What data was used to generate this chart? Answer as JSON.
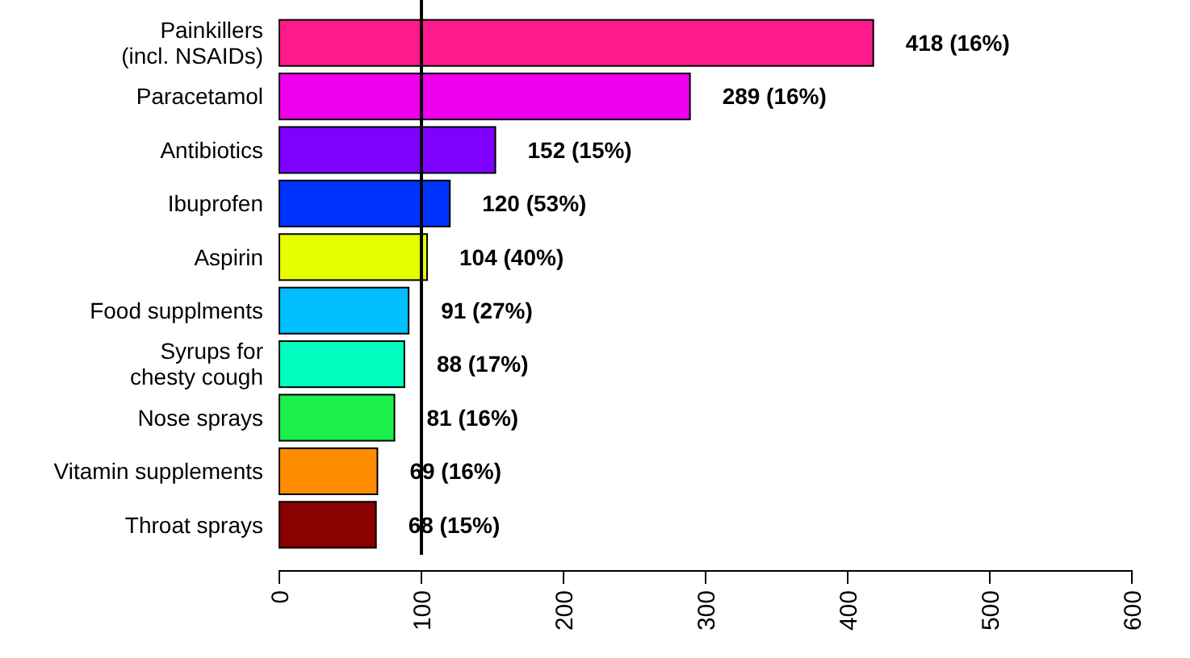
{
  "chart_data": {
    "type": "bar",
    "orientation": "horizontal",
    "categories": [
      "Painkillers\n(incl. NSAIDs)",
      "Paracetamol",
      "Antibiotics",
      "Ibuprofen",
      "Aspirin",
      "Food supplments",
      "Syrups for\nchesty cough",
      "Nose sprays",
      "Vitamin supplements",
      "Throat sprays"
    ],
    "values": [
      418,
      289,
      152,
      120,
      104,
      91,
      88,
      81,
      69,
      68
    ],
    "colors": [
      "#ff1a8c",
      "#ee00ee",
      "#8000ff",
      "#0033ff",
      "#e5ff00",
      "#00bfff",
      "#00ffbf",
      "#1aef4b",
      "#ff8c00",
      "#8b0000"
    ],
    "value_labels": [
      "418 (16%)",
      "289 (16%)",
      "152 (15%)",
      "120 (53%)",
      "104 (40%)",
      "91 (27%)",
      "88 (17%)",
      "81 (16%)",
      "69 (16%)",
      "68 (15%)"
    ],
    "xlim": [
      0,
      600
    ],
    "xticks": [
      0,
      100,
      200,
      300,
      400,
      500,
      600
    ],
    "ref_lines": [
      {
        "axis": "x",
        "value": 100,
        "color": "#000000"
      }
    ],
    "grid": false
  }
}
